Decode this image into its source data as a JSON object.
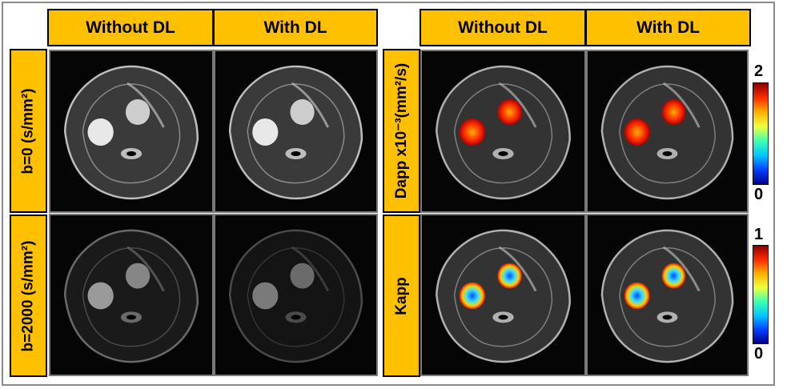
{
  "column_headers": {
    "left_without": "Without DL",
    "left_with": "With DL",
    "right_without": "Without DL",
    "right_with": "With DL"
  },
  "row_labels": {
    "b0": "b=0 (s/mm²)",
    "b2000": "b=2000 (s/mm²)",
    "dapp": "Dapp x10⁻³(mm²/s)",
    "kapp": "Kapp"
  },
  "colorbars": {
    "dapp": {
      "max": "2",
      "min": "0"
    },
    "kapp": {
      "max": "1",
      "min": "0"
    }
  },
  "colormap": [
    "#8b0000",
    "#ff2a00",
    "#ffb000",
    "#f0ff40",
    "#40ffb0",
    "#00c8ff",
    "#0040ff",
    "#00008b"
  ]
}
